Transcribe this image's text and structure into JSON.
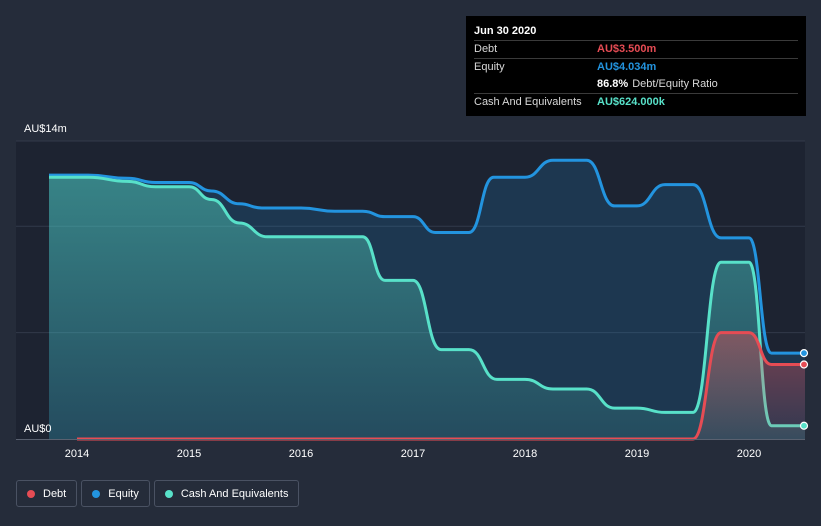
{
  "chart_data": {
    "type": "area",
    "title": "",
    "y_top_label": "AU$14m",
    "y_bottom_label": "AU$0",
    "ylim": [
      0,
      14
    ],
    "xlim": [
      2013.75,
      2020.5
    ],
    "x_ticks": [
      "2014",
      "2015",
      "2016",
      "2017",
      "2018",
      "2019",
      "2020"
    ],
    "colors": {
      "debt": "#e64c54",
      "equity": "#2394df",
      "cash": "#58e1c9"
    },
    "series": [
      {
        "key": "equity",
        "name": "Equity",
        "color": "#2394df",
        "points": [
          [
            2013.75,
            12.4
          ],
          [
            2014.1,
            12.4
          ],
          [
            2014.45,
            12.25
          ],
          [
            2014.7,
            12.05
          ],
          [
            2015.0,
            12.05
          ],
          [
            2015.2,
            11.65
          ],
          [
            2015.45,
            11.05
          ],
          [
            2015.65,
            10.85
          ],
          [
            2016.0,
            10.85
          ],
          [
            2016.3,
            10.7
          ],
          [
            2016.55,
            10.7
          ],
          [
            2016.75,
            10.45
          ],
          [
            2017.0,
            10.45
          ],
          [
            2017.2,
            9.7
          ],
          [
            2017.5,
            9.7
          ],
          [
            2017.72,
            12.3
          ],
          [
            2018.0,
            12.3
          ],
          [
            2018.25,
            13.1
          ],
          [
            2018.55,
            13.1
          ],
          [
            2018.8,
            10.95
          ],
          [
            2019.0,
            10.95
          ],
          [
            2019.25,
            11.95
          ],
          [
            2019.5,
            11.95
          ],
          [
            2019.75,
            9.45
          ],
          [
            2020.0,
            9.45
          ],
          [
            2020.2,
            4.034
          ],
          [
            2020.5,
            4.034
          ]
        ]
      },
      {
        "key": "cash",
        "name": "Cash And Equivalents",
        "color": "#58e1c9",
        "points": [
          [
            2013.75,
            12.3
          ],
          [
            2014.1,
            12.3
          ],
          [
            2014.45,
            12.1
          ],
          [
            2014.7,
            11.85
          ],
          [
            2015.0,
            11.85
          ],
          [
            2015.2,
            11.25
          ],
          [
            2015.45,
            10.15
          ],
          [
            2015.7,
            9.5
          ],
          [
            2016.0,
            9.5
          ],
          [
            2016.3,
            9.5
          ],
          [
            2016.55,
            9.5
          ],
          [
            2016.75,
            7.45
          ],
          [
            2017.0,
            7.45
          ],
          [
            2017.25,
            4.2
          ],
          [
            2017.5,
            4.2
          ],
          [
            2017.75,
            2.8
          ],
          [
            2018.0,
            2.8
          ],
          [
            2018.25,
            2.35
          ],
          [
            2018.55,
            2.35
          ],
          [
            2018.8,
            1.45
          ],
          [
            2019.0,
            1.45
          ],
          [
            2019.25,
            1.25
          ],
          [
            2019.5,
            1.25
          ],
          [
            2019.75,
            8.3
          ],
          [
            2020.0,
            8.3
          ],
          [
            2020.2,
            0.624
          ],
          [
            2020.5,
            0.624
          ]
        ]
      },
      {
        "key": "debt",
        "name": "Debt",
        "color": "#e64c54",
        "points": [
          [
            2014.0,
            0
          ],
          [
            2019.5,
            0
          ],
          [
            2019.75,
            5.0
          ],
          [
            2020.0,
            5.0
          ],
          [
            2020.2,
            3.5
          ],
          [
            2020.5,
            3.5
          ]
        ]
      }
    ]
  },
  "tooltip": {
    "date": "Jun 30 2020",
    "debt_label": "Debt",
    "debt_value": "AU$3.500m",
    "equity_label": "Equity",
    "equity_value": "AU$4.034m",
    "ratio_value": "86.8%",
    "ratio_label": "Debt/Equity Ratio",
    "cash_label": "Cash And Equivalents",
    "cash_value": "AU$624.000k"
  },
  "legend": {
    "debt": "Debt",
    "equity": "Equity",
    "cash": "Cash And Equivalents"
  }
}
